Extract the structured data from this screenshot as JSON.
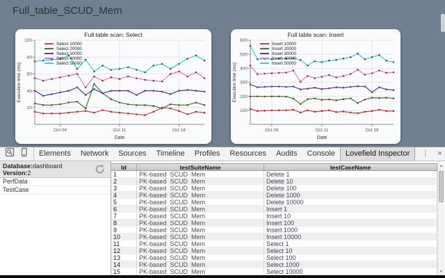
{
  "window": {
    "title": "Full_table_SCUD_Mem"
  },
  "theme": {
    "header_bg": "#708090",
    "card_bg": "#fafbfd",
    "marker_color": "#9b2d30",
    "grid_color": "#e4e4ea",
    "axis_color": "#888888"
  },
  "icons": {
    "more_glyph": "⋮",
    "close_glyph": "×",
    "scroll_up_glyph": "▲",
    "scroll_down_glyph": "▼"
  },
  "devtools": {
    "tabs": [
      {
        "label": "Elements",
        "active": false
      },
      {
        "label": "Network",
        "active": false
      },
      {
        "label": "Sources",
        "active": false
      },
      {
        "label": "Timeline",
        "active": false
      },
      {
        "label": "Profiles",
        "active": false
      },
      {
        "label": "Resources",
        "active": false
      },
      {
        "label": "Audits",
        "active": false
      },
      {
        "label": "Console",
        "active": false
      },
      {
        "label": "Lovefield Inspector",
        "active": true
      }
    ]
  },
  "inspector": {
    "database_label": "Database:",
    "database_value": "dashboard",
    "version_label": "Version:",
    "version_value": "2",
    "tables": [
      "PerfData",
      "TestCase"
    ]
  },
  "grid": {
    "columns": [
      "Id",
      "testSuiteName",
      "testCaseName"
    ],
    "rows": [
      {
        "id": "1",
        "suite": "PK-based_SCUD_Mem",
        "case": "Delete 1"
      },
      {
        "id": "2",
        "suite": "PK-based_SCUD_Mem",
        "case": "Delete 10"
      },
      {
        "id": "3",
        "suite": "PK-based_SCUD_Mem",
        "case": "Delete 100"
      },
      {
        "id": "4",
        "suite": "PK-based_SCUD_Mem",
        "case": "Delete 1000"
      },
      {
        "id": "5",
        "suite": "PK-based_SCUD_Mem",
        "case": "Delete 10000"
      },
      {
        "id": "6",
        "suite": "PK-based_SCUD_Mem",
        "case": "Insert 1"
      },
      {
        "id": "7",
        "suite": "PK-based_SCUD_Mem",
        "case": "Insert 10"
      },
      {
        "id": "8",
        "suite": "PK-based_SCUD_Mem",
        "case": "Insert 100"
      },
      {
        "id": "9",
        "suite": "PK-based_SCUD_Mem",
        "case": "Insert 1000"
      },
      {
        "id": "10",
        "suite": "PK-based_SCUD_Mem",
        "case": "Insert 10000"
      },
      {
        "id": "11",
        "suite": "PK-based_SCUD_Mem",
        "case": "Select 1"
      },
      {
        "id": "12",
        "suite": "PK-based_SCUD_Mem",
        "case": "Select 10"
      },
      {
        "id": "13",
        "suite": "PK-based_SCUD_Mem",
        "case": "Select 100"
      },
      {
        "id": "14",
        "suite": "PK-based_SCUD_Mem",
        "case": "Select 1000"
      },
      {
        "id": "15",
        "suite": "PK-based_SCUD_Mem",
        "case": "Select 10000"
      }
    ]
  },
  "chart_data": [
    {
      "type": "line",
      "title": "Full table scan: Select",
      "xlabel": "Date",
      "ylabel": "Execution time (ms)",
      "n_points": 21,
      "x_tick_indices": [
        3,
        10,
        17
      ],
      "x_tick_labels": [
        "Oct 04",
        "Oct 11",
        "Oct 18"
      ],
      "ylim": [
        0,
        100
      ],
      "yticks": [
        20,
        40,
        60,
        80,
        100
      ],
      "legend_position": "top-left",
      "grid": true,
      "series": [
        {
          "name": "Select 10000",
          "color": "#d42a2a",
          "values": [
            15,
            13,
            13,
            13,
            14,
            15,
            16,
            14,
            17,
            15,
            14,
            13,
            12,
            11,
            15,
            20,
            19,
            16,
            12,
            15,
            14
          ]
        },
        {
          "name": "Select 20000",
          "color": "#157f15",
          "values": [
            25,
            23,
            23,
            24,
            26,
            27,
            19,
            48,
            37,
            30,
            26,
            24,
            23,
            23,
            22,
            19,
            24,
            23,
            23,
            26,
            23
          ]
        },
        {
          "name": "Select 30000",
          "color": "#2828cc",
          "values": [
            40,
            34,
            36,
            38,
            40,
            44,
            35,
            42,
            37,
            40,
            40,
            40,
            35,
            40,
            40,
            39,
            36,
            40,
            41,
            40,
            39
          ]
        },
        {
          "name": "Select 40000",
          "color": "#d66ed0",
          "values": [
            55,
            52,
            54,
            56,
            58,
            60,
            44,
            57,
            52,
            56,
            54,
            57,
            55,
            53,
            52,
            51,
            60,
            63,
            57,
            62,
            55
          ]
        },
        {
          "name": "Select 50000",
          "color": "#00dede",
          "values": [
            75,
            76,
            77,
            78,
            82,
            66,
            77,
            63,
            70,
            65,
            66,
            68,
            65,
            62,
            70,
            72,
            66,
            72,
            78,
            82,
            76
          ]
        }
      ]
    },
    {
      "type": "line",
      "title": "Full table scan: Insert",
      "xlabel": "Date",
      "ylabel": "Execution time (ms)",
      "n_points": 21,
      "x_tick_indices": [
        3,
        10,
        17
      ],
      "x_tick_labels": [
        "Oct 04",
        "Oct 11",
        "Oct 18"
      ],
      "ylim": [
        0,
        600
      ],
      "yticks": [
        100,
        200,
        300,
        400,
        500,
        600
      ],
      "legend_position": "top-left",
      "grid": true,
      "series": [
        {
          "name": "Insert 10000",
          "color": "#d42a2a",
          "values": [
            110,
            95,
            98,
            100,
            100,
            100,
            105,
            85,
            100,
            90,
            95,
            100,
            88,
            92,
            85,
            80,
            90,
            95,
            105,
            95,
            95
          ]
        },
        {
          "name": "Insert 20000",
          "color": "#157f15",
          "values": [
            200,
            200,
            199,
            200,
            200,
            199,
            185,
            145,
            180,
            186,
            175,
            178,
            172,
            180,
            186,
            152,
            178,
            190,
            188,
            190,
            186
          ]
        },
        {
          "name": "Insert 30000",
          "color": "#2828cc",
          "values": [
            285,
            265,
            268,
            270,
            270,
            268,
            270,
            250,
            255,
            262,
            252,
            258,
            265,
            262,
            268,
            272,
            270,
            230,
            265,
            250,
            245
          ]
        },
        {
          "name": "Insert 40000",
          "color": "#d66ed0",
          "values": [
            420,
            358,
            362,
            365,
            368,
            370,
            385,
            305,
            345,
            330,
            340,
            352,
            335,
            345,
            360,
            390,
            355,
            365,
            385,
            368,
            372
          ]
        },
        {
          "name": "Insert 50000",
          "color": "#00dede",
          "values": [
            560,
            465,
            468,
            465,
            470,
            468,
            472,
            460,
            420,
            450,
            445,
            455,
            460,
            470,
            480,
            505,
            465,
            480,
            495,
            455,
            445
          ]
        }
      ]
    }
  ]
}
